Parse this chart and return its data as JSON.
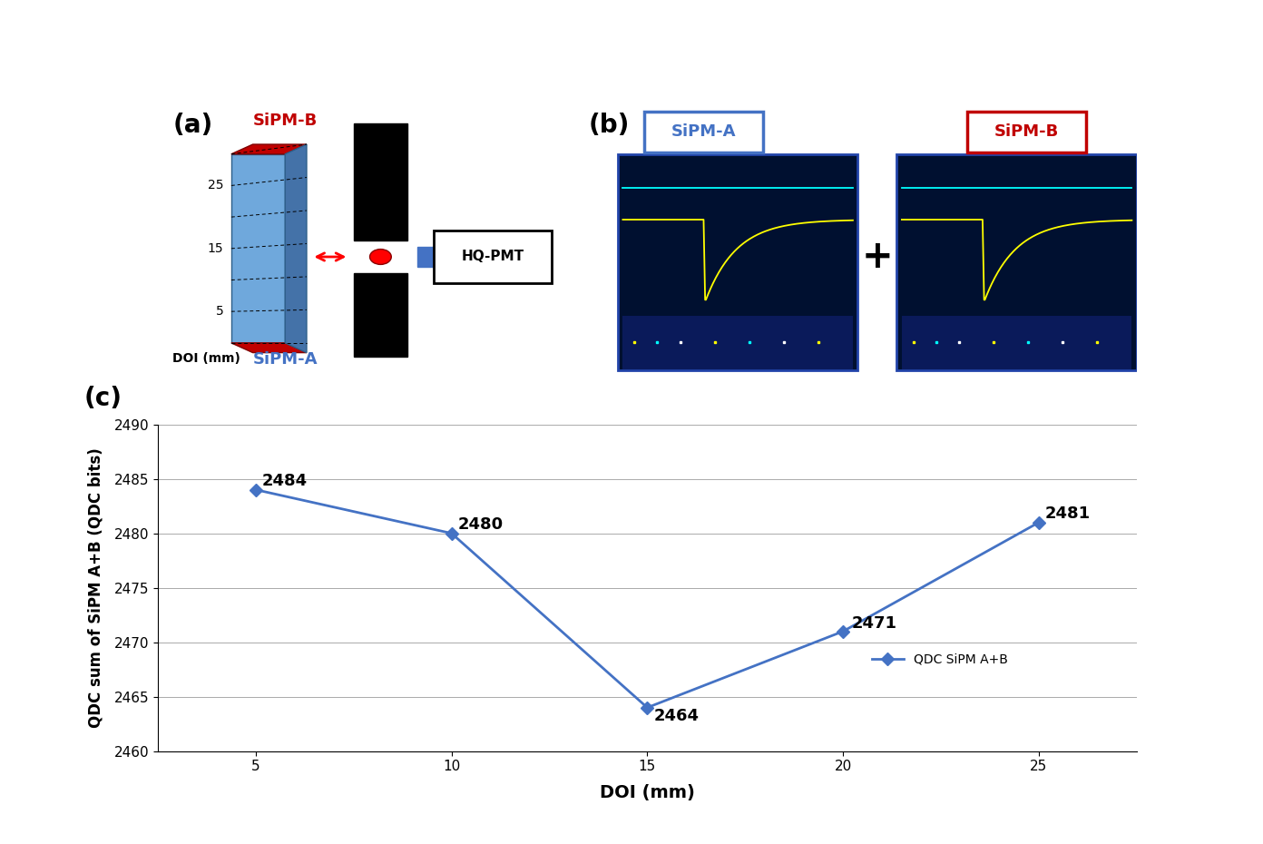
{
  "doi_x": [
    5,
    10,
    15,
    20,
    25
  ],
  "qdc_y": [
    2484,
    2480,
    2464,
    2471,
    2481
  ],
  "line_color": "#4472C4",
  "marker_style": "D",
  "marker_size": 7,
  "ylim": [
    2460,
    2490
  ],
  "yticks": [
    2460,
    2465,
    2470,
    2475,
    2480,
    2485,
    2490
  ],
  "xticks": [
    5,
    10,
    15,
    20,
    25
  ],
  "xlabel": "DOI (mm)",
  "ylabel": "QDC sum of SiPM A+B (QDC bits)",
  "legend_label": "QDC SiPM A+B",
  "panel_c_label": "(c)",
  "panel_a_label": "(a)",
  "panel_b_label": "(b)",
  "sipmA_color": "#4472C4",
  "sipmB_color": "#C00000",
  "sipmA_label": "SiPM-A",
  "sipmB_label": "SiPM-B",
  "hqpmt_label": "HQ-PMT",
  "doi_label": "DOI (mm)",
  "background_color": "#FFFFFF",
  "osc_bg": "#001030",
  "osc_border": "#2244AA"
}
